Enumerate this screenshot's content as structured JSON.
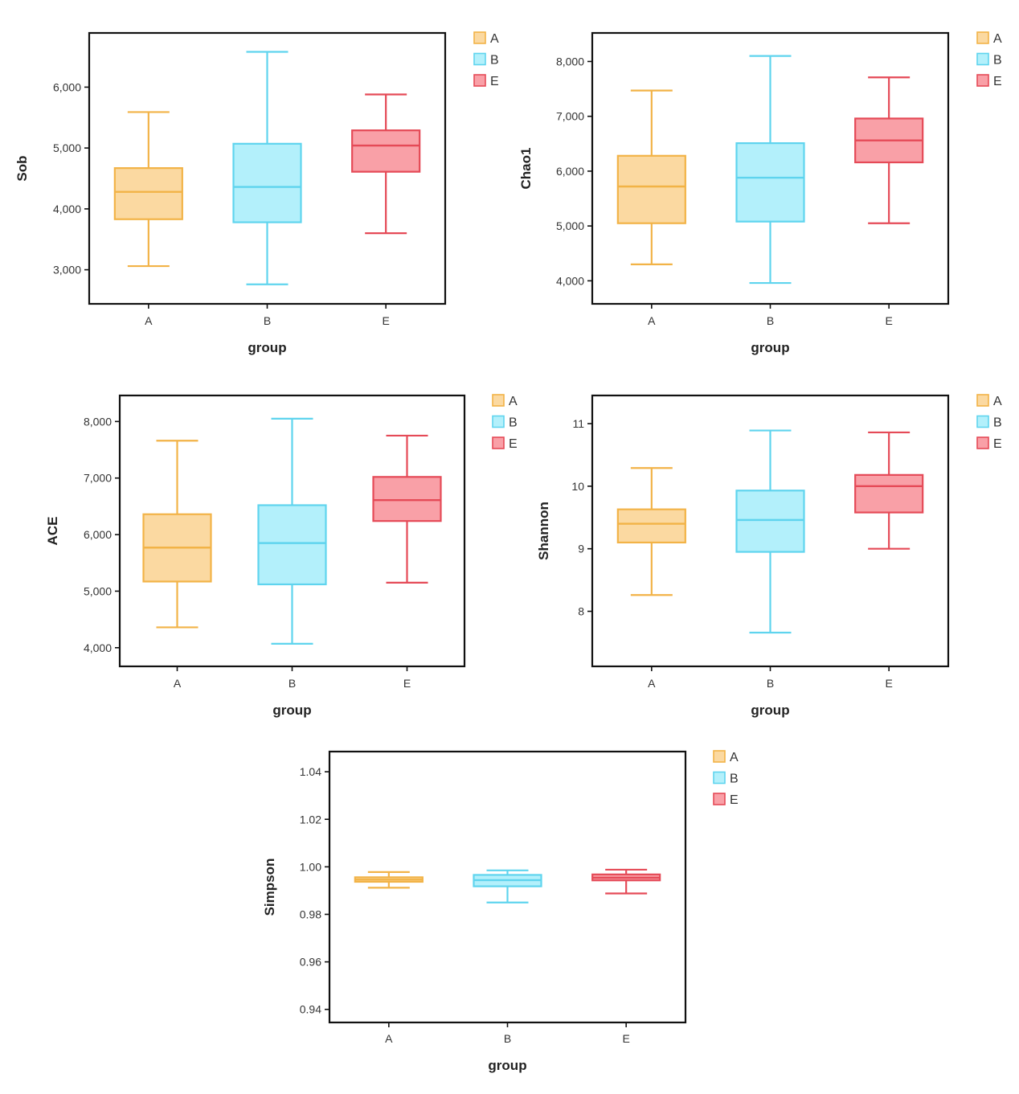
{
  "colors": {
    "A": {
      "stroke": "#f2b347",
      "fill": "#fbd9a1"
    },
    "B": {
      "stroke": "#5fd4ee",
      "fill": "#b3f0fb"
    },
    "E": {
      "stroke": "#e54a57",
      "fill": "#f9a0a7"
    }
  },
  "legend": [
    "A",
    "B",
    "E"
  ],
  "chart_data": [
    {
      "type": "box",
      "title": "",
      "xlabel": "group",
      "ylabel": "Sob",
      "categories": [
        "A",
        "B",
        "E"
      ],
      "yticks": [
        3000,
        4000,
        5000,
        6000
      ],
      "ytick_labels": [
        "3,000",
        "4,000",
        "5,000",
        "6,000"
      ],
      "ylim": [
        2440,
        6890
      ],
      "boxes": [
        {
          "group": "A",
          "min": 3060,
          "q1": 3830,
          "median": 4280,
          "q3": 4670,
          "max": 5590
        },
        {
          "group": "B",
          "min": 2760,
          "q1": 3780,
          "median": 4360,
          "q3": 5070,
          "max": 6580
        },
        {
          "group": "E",
          "min": 3600,
          "q1": 4610,
          "median": 5040,
          "q3": 5290,
          "max": 5880
        }
      ],
      "legend": [
        "A",
        "B",
        "E"
      ],
      "grid": false
    },
    {
      "type": "box",
      "title": "",
      "xlabel": "group",
      "ylabel": "Chao1",
      "categories": [
        "A",
        "B",
        "E"
      ],
      "yticks": [
        4000,
        5000,
        6000,
        7000,
        8000
      ],
      "ytick_labels": [
        "4,000",
        "5,000",
        "6,000",
        "7,000",
        "8,000"
      ],
      "ylim": [
        3580,
        8520
      ],
      "boxes": [
        {
          "group": "A",
          "min": 4300,
          "q1": 5050,
          "median": 5720,
          "q3": 6280,
          "max": 7470
        },
        {
          "group": "B",
          "min": 3960,
          "q1": 5080,
          "median": 5880,
          "q3": 6510,
          "max": 8100
        },
        {
          "group": "E",
          "min": 5050,
          "q1": 6160,
          "median": 6560,
          "q3": 6960,
          "max": 7710
        }
      ],
      "legend": [
        "A",
        "B",
        "E"
      ],
      "grid": false
    },
    {
      "type": "box",
      "title": "",
      "xlabel": "group",
      "ylabel": "ACE",
      "categories": [
        "A",
        "B",
        "E"
      ],
      "yticks": [
        4000,
        5000,
        6000,
        7000,
        8000
      ],
      "ytick_labels": [
        "4,000",
        "5,000",
        "6,000",
        "7,000",
        "8,000"
      ],
      "ylim": [
        3670,
        8460
      ],
      "boxes": [
        {
          "group": "A",
          "min": 4360,
          "q1": 5170,
          "median": 5770,
          "q3": 6360,
          "max": 7660
        },
        {
          "group": "B",
          "min": 4070,
          "q1": 5120,
          "median": 5850,
          "q3": 6520,
          "max": 8050
        },
        {
          "group": "E",
          "min": 5150,
          "q1": 6240,
          "median": 6610,
          "q3": 7020,
          "max": 7750
        }
      ],
      "legend": [
        "A",
        "B",
        "E"
      ],
      "grid": false
    },
    {
      "type": "box",
      "title": "",
      "xlabel": "group",
      "ylabel": "Shannon",
      "categories": [
        "A",
        "B",
        "E"
      ],
      "yticks": [
        8,
        9,
        10,
        11
      ],
      "ytick_labels": [
        "8",
        "9",
        "10",
        "11"
      ],
      "ylim": [
        7.12,
        11.45
      ],
      "boxes": [
        {
          "group": "A",
          "min": 8.26,
          "q1": 9.1,
          "median": 9.4,
          "q3": 9.63,
          "max": 10.29
        },
        {
          "group": "B",
          "min": 7.66,
          "q1": 8.95,
          "median": 9.46,
          "q3": 9.93,
          "max": 10.89
        },
        {
          "group": "E",
          "min": 9.0,
          "q1": 9.58,
          "median": 10.0,
          "q3": 10.18,
          "max": 10.86
        }
      ],
      "legend": [
        "A",
        "B",
        "E"
      ],
      "grid": false
    },
    {
      "type": "box",
      "title": "",
      "xlabel": "group",
      "ylabel": "Simpson",
      "categories": [
        "A",
        "B",
        "E"
      ],
      "yticks": [
        0.94,
        0.96,
        0.98,
        1.0,
        1.02,
        1.04
      ],
      "ytick_labels": [
        "0.94",
        "0.96",
        "0.98",
        "1.00",
        "1.02",
        "1.04"
      ],
      "ylim": [
        0.9345,
        1.0485
      ],
      "boxes": [
        {
          "group": "A",
          "min": 0.9912,
          "q1": 0.9937,
          "median": 0.9946,
          "q3": 0.9956,
          "max": 0.9978
        },
        {
          "group": "B",
          "min": 0.985,
          "q1": 0.9918,
          "median": 0.9944,
          "q3": 0.9966,
          "max": 0.9985
        },
        {
          "group": "E",
          "min": 0.9888,
          "q1": 0.9943,
          "median": 0.9954,
          "q3": 0.9968,
          "max": 0.9988
        }
      ],
      "legend": [
        "A",
        "B",
        "E"
      ],
      "grid": false
    }
  ]
}
